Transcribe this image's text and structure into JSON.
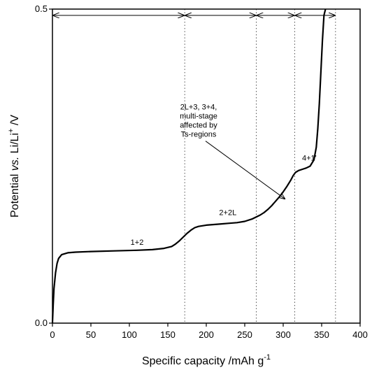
{
  "chart_data": {
    "type": "line",
    "title": "",
    "xlabel": "Specific capacity /mAh g",
    "xlabel_sup": "-1",
    "ylabel_parts": [
      "Potential ",
      "vs.",
      " Li/Li",
      "+",
      " /V"
    ],
    "xlim": [
      0,
      400
    ],
    "ylim": [
      0.0,
      0.5
    ],
    "x_ticks": [
      0,
      50,
      100,
      150,
      200,
      250,
      300,
      350,
      400
    ],
    "x_tick_labels": [
      "0",
      "50",
      "100",
      "150",
      "200",
      "250",
      "300",
      "350",
      "400"
    ],
    "y_ticks": [
      0.0,
      0.5
    ],
    "y_tick_labels": [
      "0.0",
      "0.5"
    ],
    "grid": false,
    "series": [
      {
        "color": "#000000",
        "x": [
          0,
          1,
          2,
          4,
          6,
          8,
          12,
          20,
          30,
          50,
          80,
          110,
          130,
          145,
          155,
          160,
          165,
          170,
          175,
          180,
          185,
          190,
          195,
          200,
          210,
          220,
          230,
          240,
          250,
          260,
          270,
          275,
          280,
          285,
          290,
          295,
          300,
          305,
          310,
          313,
          316,
          320,
          325,
          330,
          335,
          340,
          343,
          345,
          347,
          349,
          351,
          353,
          355
        ],
        "y": [
          0.0,
          0.03,
          0.055,
          0.08,
          0.095,
          0.103,
          0.109,
          0.112,
          0.113,
          0.114,
          0.115,
          0.116,
          0.117,
          0.119,
          0.122,
          0.126,
          0.131,
          0.137,
          0.143,
          0.148,
          0.152,
          0.154,
          0.155,
          0.156,
          0.157,
          0.158,
          0.159,
          0.16,
          0.162,
          0.166,
          0.172,
          0.176,
          0.181,
          0.187,
          0.194,
          0.201,
          0.209,
          0.218,
          0.228,
          0.235,
          0.24,
          0.243,
          0.245,
          0.247,
          0.25,
          0.26,
          0.28,
          0.31,
          0.35,
          0.4,
          0.45,
          0.49,
          0.5
        ]
      }
    ],
    "dotted_lines_x": [
      172,
      265,
      315,
      368
    ],
    "arrows": [
      {
        "x1": 0,
        "x2": 172,
        "y": 0.49
      },
      {
        "x1": 172,
        "x2": 265,
        "y": 0.49
      },
      {
        "x1": 265,
        "x2": 315,
        "y": 0.49
      },
      {
        "x1": 315,
        "x2": 368,
        "y": 0.49
      }
    ],
    "annotations": [
      {
        "text": "1+2",
        "x": 110,
        "y": 0.125
      },
      {
        "text": "2+2L",
        "x": 228,
        "y": 0.172
      },
      {
        "text": "4+1'",
        "x": 334,
        "y": 0.259
      },
      {
        "lines": [
          "2L+3, 3+4,",
          "multi-stage",
          "affected by",
          "Ts-regions"
        ],
        "x": 190,
        "y": 0.34,
        "pointer_to": [
          302,
          0.198
        ]
      }
    ]
  }
}
